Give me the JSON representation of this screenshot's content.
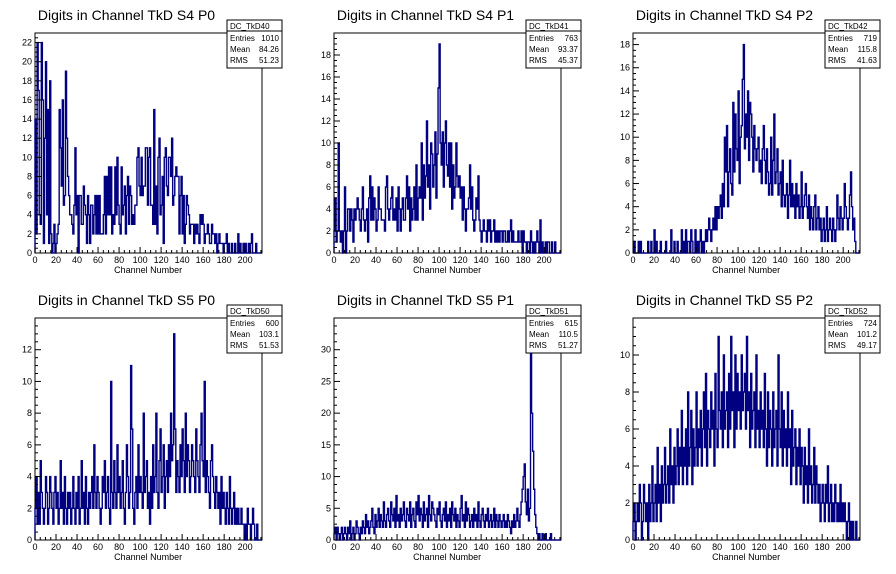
{
  "colors": {
    "hist_line": "#000080",
    "axis": "#000000",
    "background": "#ffffff"
  },
  "chart_data": [
    {
      "type": "histogram",
      "title": "Digits in Channel TkD S4 P0",
      "xlabel": "Channel Number",
      "xlim": [
        0,
        216
      ],
      "ylim": [
        0,
        23
      ],
      "xticks": [
        0,
        20,
        40,
        60,
        80,
        100,
        120,
        140,
        160,
        180,
        200
      ],
      "yticks": [
        0,
        2,
        4,
        6,
        8,
        10,
        12,
        14,
        16,
        18,
        20,
        22
      ],
      "stats": {
        "name": "DC_TkD40",
        "entries_label": "Entries",
        "entries": "1010",
        "mean_label": "Mean",
        "mean": "84.26",
        "rms_label": "RMS",
        "rms": "51.23"
      },
      "bin_width": 1,
      "values": [
        14,
        2,
        22,
        17,
        4,
        3,
        22,
        16,
        1,
        12,
        20,
        4,
        15,
        1,
        18,
        2,
        0,
        1,
        3,
        0,
        1,
        2,
        3,
        15,
        11,
        7,
        16,
        5,
        6,
        19,
        12,
        8,
        6,
        4,
        4,
        3,
        2,
        5,
        11,
        4,
        6,
        0,
        6,
        6,
        3,
        3,
        7,
        5,
        4,
        1,
        6,
        4,
        1,
        5,
        5,
        2,
        4,
        6,
        2,
        6,
        2,
        6,
        2,
        2,
        2,
        4,
        8,
        2,
        8,
        4,
        9,
        4,
        9,
        2,
        4,
        3,
        9,
        4,
        10,
        5,
        3,
        2,
        9,
        4,
        5,
        7,
        2,
        6,
        8,
        3,
        7,
        6,
        3,
        4,
        3,
        5,
        5,
        10,
        11,
        7,
        6,
        10,
        6,
        7,
        7,
        11,
        11,
        5,
        10,
        11,
        5,
        5,
        3,
        15,
        3,
        7,
        2,
        10,
        12,
        4,
        5,
        8,
        1,
        10,
        11,
        7,
        6,
        10,
        10,
        8,
        12,
        5,
        6,
        8,
        9,
        8,
        8,
        2,
        6,
        8,
        2,
        6,
        1,
        3,
        6,
        5,
        4,
        2,
        3,
        3,
        3,
        1,
        3,
        2,
        3,
        2,
        1,
        4,
        3,
        4,
        3,
        1,
        2,
        2,
        3,
        2,
        1,
        1,
        3,
        2,
        2,
        1,
        2,
        0,
        1,
        2,
        1,
        1,
        1,
        0,
        1,
        1,
        2,
        0,
        1,
        0,
        0,
        1,
        0,
        0,
        1,
        0,
        0,
        2,
        0,
        1,
        0,
        0,
        1,
        0,
        1,
        0,
        0,
        1,
        0,
        1,
        2,
        0,
        0,
        0,
        1,
        0,
        0,
        0,
        0,
        0
      ]
    },
    {
      "type": "histogram",
      "title": "Digits in Channel TkD S4 P1",
      "xlabel": "Channel Number",
      "xlim": [
        0,
        216
      ],
      "ylim": [
        0,
        20
      ],
      "xticks": [
        0,
        20,
        40,
        60,
        80,
        100,
        120,
        140,
        160,
        180,
        200
      ],
      "yticks": [
        0,
        2,
        4,
        6,
        8,
        10,
        12,
        14,
        16,
        18
      ],
      "stats": {
        "name": "DC_TkD41",
        "entries_label": "Entries",
        "entries": "763",
        "mean_label": "Mean",
        "mean": "93.37",
        "rms_label": "RMS",
        "rms": "45.37"
      },
      "bin_width": 1,
      "values": [
        2,
        5,
        1,
        2,
        10,
        2,
        1,
        2,
        0,
        2,
        6,
        0,
        2,
        4,
        4,
        2,
        4,
        3,
        1,
        4,
        3,
        4,
        5,
        4,
        3,
        2,
        4,
        6,
        3,
        2,
        3,
        4,
        1,
        5,
        7,
        3,
        6,
        3,
        5,
        4,
        2,
        3,
        6,
        4,
        4,
        3,
        3,
        3,
        2,
        6,
        7,
        4,
        3,
        4,
        5,
        6,
        3,
        4,
        3,
        5,
        2,
        6,
        4,
        2,
        4,
        5,
        3,
        3,
        5,
        7,
        4,
        6,
        2,
        5,
        3,
        4,
        6,
        3,
        8,
        3,
        5,
        6,
        5,
        10,
        3,
        8,
        5,
        7,
        12,
        6,
        8,
        4,
        10,
        9,
        6,
        8,
        11,
        5,
        9,
        15,
        19,
        10,
        8,
        11,
        6,
        10,
        12,
        8,
        7,
        10,
        6,
        10,
        4,
        8,
        5,
        6,
        10,
        7,
        6,
        7,
        5,
        6,
        3,
        6,
        4,
        2,
        4,
        4,
        5,
        8,
        4,
        6,
        3,
        2,
        3,
        5,
        4,
        7,
        3,
        2,
        1,
        2,
        3,
        2,
        2,
        1,
        3,
        2,
        3,
        1,
        2,
        2,
        3,
        1,
        2,
        1,
        2,
        1,
        2,
        2,
        1,
        2,
        2,
        1,
        1,
        2,
        1,
        2,
        3,
        1,
        2,
        1,
        1,
        1,
        1,
        2,
        1,
        1,
        2,
        0,
        2,
        1,
        1,
        0,
        1,
        1,
        0,
        2,
        1,
        0,
        1,
        0,
        1,
        2,
        1,
        0,
        3,
        0,
        1,
        0,
        0,
        1,
        0,
        1,
        1,
        0,
        0,
        1,
        0,
        0,
        1,
        0,
        0,
        0,
        0,
        0
      ]
    },
    {
      "type": "histogram",
      "title": "Digits in Channel TkD S4 P2",
      "xlabel": "Channel Number",
      "xlim": [
        0,
        216
      ],
      "ylim": [
        0,
        19
      ],
      "xticks": [
        0,
        20,
        40,
        60,
        80,
        100,
        120,
        140,
        160,
        180,
        200
      ],
      "yticks": [
        0,
        2,
        4,
        6,
        8,
        10,
        12,
        14,
        16,
        18
      ],
      "stats": {
        "name": "DC_TkD42",
        "entries_label": "Entries",
        "entries": "719",
        "mean_label": "Mean",
        "mean": "115.8",
        "rms_label": "RMS",
        "rms": "41.63"
      },
      "bin_width": 1,
      "values": [
        0,
        1,
        0,
        0,
        0,
        1,
        0,
        1,
        0,
        0,
        0,
        0,
        0,
        0,
        1,
        0,
        0,
        1,
        0,
        0,
        2,
        0,
        1,
        0,
        0,
        0,
        1,
        0,
        0,
        0,
        0,
        1,
        0,
        0,
        0,
        0,
        2,
        0,
        0,
        1,
        0,
        0,
        1,
        0,
        0,
        0,
        2,
        0,
        1,
        0,
        2,
        0,
        1,
        1,
        0,
        2,
        1,
        0,
        0,
        2,
        0,
        1,
        0,
        1,
        2,
        0,
        1,
        0,
        1,
        2,
        1,
        2,
        3,
        2,
        1,
        2,
        3,
        2,
        4,
        2,
        4,
        3,
        4,
        5,
        3,
        6,
        4,
        10,
        7,
        11,
        4,
        7,
        9,
        6,
        5,
        13,
        7,
        12,
        9,
        8,
        14,
        6,
        10,
        11,
        15,
        18,
        9,
        12,
        10,
        14,
        8,
        13,
        12,
        10,
        7,
        11,
        9,
        8,
        9,
        10,
        7,
        8,
        6,
        9,
        11,
        8,
        6,
        9,
        7,
        5,
        6,
        10,
        5,
        8,
        12,
        6,
        7,
        9,
        5,
        6,
        7,
        4,
        8,
        5,
        4,
        5,
        6,
        3,
        5,
        8,
        4,
        6,
        4,
        5,
        3,
        6,
        4,
        5,
        3,
        4,
        7,
        3,
        4,
        5,
        6,
        4,
        3,
        5,
        2,
        4,
        3,
        2,
        4,
        5,
        2,
        3,
        4,
        2,
        3,
        1,
        2,
        3,
        1,
        2,
        4,
        1,
        2,
        3,
        2,
        1,
        3,
        2,
        1,
        2,
        5,
        3,
        2,
        4,
        3,
        2,
        3,
        6,
        4,
        3,
        2,
        3,
        5,
        7,
        4,
        2,
        3,
        1,
        0,
        0,
        0,
        0
      ]
    },
    {
      "type": "histogram",
      "title": "Digits in Channel TkD S5 P0",
      "xlabel": "Channel Number",
      "xlim": [
        0,
        216
      ],
      "ylim": [
        0,
        14
      ],
      "xticks": [
        0,
        20,
        40,
        60,
        80,
        100,
        120,
        140,
        160,
        180,
        200
      ],
      "yticks": [
        0,
        2,
        4,
        6,
        8,
        10,
        12
      ],
      "stats": {
        "name": "DC_TkD50",
        "entries_label": "Entries",
        "entries": "600",
        "mean_label": "Mean",
        "mean": "103.1",
        "rms_label": "RMS",
        "rms": "51.53"
      },
      "bin_width": 1,
      "values": [
        2,
        4,
        1,
        3,
        1,
        5,
        3,
        2,
        1,
        2,
        4,
        3,
        1,
        2,
        4,
        3,
        2,
        1,
        3,
        4,
        2,
        3,
        1,
        2,
        5,
        2,
        3,
        1,
        4,
        2,
        1,
        3,
        2,
        3,
        1,
        2,
        4,
        2,
        1,
        3,
        2,
        4,
        1,
        2,
        5,
        2,
        3,
        1,
        4,
        2,
        1,
        3,
        2,
        3,
        4,
        2,
        6,
        3,
        2,
        4,
        3,
        2,
        1,
        2,
        4,
        3,
        5,
        2,
        3,
        4,
        2,
        1,
        10,
        3,
        2,
        5,
        3,
        2,
        6,
        3,
        4,
        2,
        3,
        5,
        2,
        1,
        3,
        6,
        4,
        2,
        3,
        11,
        7,
        2,
        1,
        3,
        4,
        2,
        6,
        3,
        4,
        3,
        2,
        8,
        3,
        4,
        5,
        2,
        3,
        1,
        4,
        2,
        6,
        3,
        4,
        8,
        3,
        2,
        5,
        7,
        3,
        4,
        6,
        2,
        4,
        5,
        3,
        6,
        4,
        8,
        5,
        6,
        13,
        7,
        3,
        5,
        4,
        3,
        6,
        4,
        7,
        5,
        3,
        8,
        4,
        6,
        5,
        3,
        4,
        6,
        5,
        4,
        3,
        7,
        5,
        4,
        3,
        6,
        8,
        5,
        4,
        10,
        3,
        5,
        4,
        3,
        2,
        5,
        6,
        4,
        3,
        2,
        4,
        3,
        2,
        3,
        1,
        4,
        2,
        3,
        2,
        1,
        3,
        2,
        1,
        4,
        2,
        1,
        2,
        3,
        1,
        2,
        1,
        2,
        1,
        1,
        2,
        1,
        1,
        0,
        1,
        0,
        2,
        1,
        1,
        0,
        1,
        2,
        1,
        0,
        0,
        1,
        0,
        0,
        0,
        0
      ]
    },
    {
      "type": "histogram",
      "title": "Digits in Channel TkD S5 P1",
      "xlabel": "Channel Number",
      "xlim": [
        0,
        216
      ],
      "ylim": [
        0,
        35
      ],
      "xticks": [
        0,
        20,
        40,
        60,
        80,
        100,
        120,
        140,
        160,
        180,
        200
      ],
      "yticks": [
        0,
        5,
        10,
        15,
        20,
        25,
        30
      ],
      "stats": {
        "name": "DC_TkD51",
        "entries_label": "Entries",
        "entries": "615",
        "mean_label": "Mean",
        "mean": "110.5",
        "rms_label": "RMS",
        "rms": "51.27"
      },
      "bin_width": 1,
      "values": [
        1,
        2,
        0,
        2,
        1,
        0,
        1,
        2,
        0,
        1,
        2,
        1,
        0,
        2,
        1,
        3,
        0,
        1,
        2,
        0,
        1,
        3,
        2,
        1,
        0,
        2,
        1,
        3,
        2,
        1,
        4,
        2,
        3,
        1,
        2,
        3,
        5,
        2,
        1,
        4,
        2,
        3,
        5,
        2,
        4,
        3,
        2,
        6,
        3,
        2,
        4,
        5,
        3,
        2,
        6,
        4,
        3,
        5,
        2,
        7,
        3,
        4,
        2,
        5,
        3,
        4,
        6,
        3,
        2,
        5,
        4,
        3,
        6,
        2,
        4,
        5,
        3,
        2,
        6,
        4,
        7,
        3,
        5,
        4,
        2,
        6,
        3,
        4,
        5,
        2,
        7,
        4,
        3,
        6,
        5,
        4,
        3,
        2,
        5,
        4,
        6,
        3,
        2,
        4,
        5,
        3,
        6,
        2,
        4,
        3,
        5,
        2,
        6,
        4,
        3,
        5,
        2,
        4,
        3,
        2,
        5,
        7,
        3,
        4,
        2,
        6,
        3,
        5,
        4,
        2,
        3,
        4,
        2,
        5,
        3,
        4,
        2,
        6,
        3,
        2,
        4,
        5,
        3,
        2,
        4,
        3,
        5,
        2,
        3,
        4,
        2,
        3,
        5,
        2,
        4,
        3,
        2,
        4,
        3,
        2,
        3,
        4,
        2,
        3,
        2,
        4,
        3,
        2,
        1,
        3,
        2,
        4,
        2,
        3,
        5,
        3,
        2,
        4,
        6,
        8,
        10,
        12,
        6,
        4,
        8,
        3,
        5,
        30,
        20,
        14,
        8,
        4,
        2,
        1,
        0,
        1,
        0,
        0,
        1,
        0,
        0,
        1,
        0,
        0,
        0,
        0,
        1,
        0,
        0,
        0,
        0,
        0,
        0,
        0,
        0,
        0
      ]
    },
    {
      "type": "histogram",
      "title": "Digits in Channel TkD S5 P2",
      "xlabel": "Channel Number",
      "xlim": [
        0,
        216
      ],
      "ylim": [
        0,
        12
      ],
      "xticks": [
        0,
        20,
        40,
        60,
        80,
        100,
        120,
        140,
        160,
        180,
        200
      ],
      "yticks": [
        0,
        2,
        4,
        6,
        8,
        10
      ],
      "stats": {
        "name": "DC_TkD52",
        "entries_label": "Entries",
        "entries": "724",
        "mean_label": "Mean",
        "mean": "101.2",
        "rms_label": "RMS",
        "rms": "49.17"
      },
      "bin_width": 1,
      "values": [
        1,
        2,
        0,
        1,
        2,
        1,
        3,
        2,
        0,
        1,
        3,
        2,
        1,
        2,
        0,
        3,
        1,
        2,
        4,
        1,
        2,
        3,
        1,
        5,
        2,
        3,
        1,
        4,
        2,
        3,
        5,
        2,
        3,
        4,
        2,
        6,
        3,
        4,
        2,
        5,
        3,
        4,
        6,
        3,
        5,
        4,
        7,
        3,
        5,
        4,
        6,
        3,
        8,
        4,
        5,
        7,
        3,
        6,
        4,
        5,
        8,
        4,
        6,
        5,
        7,
        4,
        6,
        8,
        5,
        9,
        4,
        7,
        6,
        5,
        8,
        6,
        7,
        4,
        9,
        6,
        5,
        11,
        7,
        6,
        8,
        5,
        10,
        6,
        7,
        8,
        5,
        9,
        6,
        11,
        7,
        8,
        5,
        10,
        6,
        9,
        7,
        8,
        6,
        10,
        7,
        8,
        9,
        6,
        11,
        7,
        8,
        5,
        9,
        6,
        7,
        8,
        5,
        10,
        6,
        7,
        5,
        8,
        6,
        7,
        5,
        9,
        6,
        4,
        8,
        5,
        7,
        6,
        4,
        8,
        5,
        6,
        7,
        4,
        10,
        6,
        5,
        8,
        4,
        7,
        5,
        6,
        4,
        8,
        5,
        6,
        3,
        7,
        4,
        5,
        6,
        3,
        5,
        4,
        6,
        3,
        5,
        4,
        2,
        5,
        3,
        4,
        2,
        6,
        3,
        4,
        2,
        3,
        5,
        2,
        4,
        3,
        2,
        3,
        1,
        2,
        3,
        2,
        1,
        3,
        2,
        4,
        1,
        2,
        3,
        1,
        2,
        1,
        3,
        2,
        1,
        2,
        1,
        3,
        1,
        2,
        1,
        2,
        1,
        0,
        1,
        2,
        0,
        1,
        0,
        1,
        0,
        0,
        1,
        0,
        0,
        0
      ]
    }
  ]
}
